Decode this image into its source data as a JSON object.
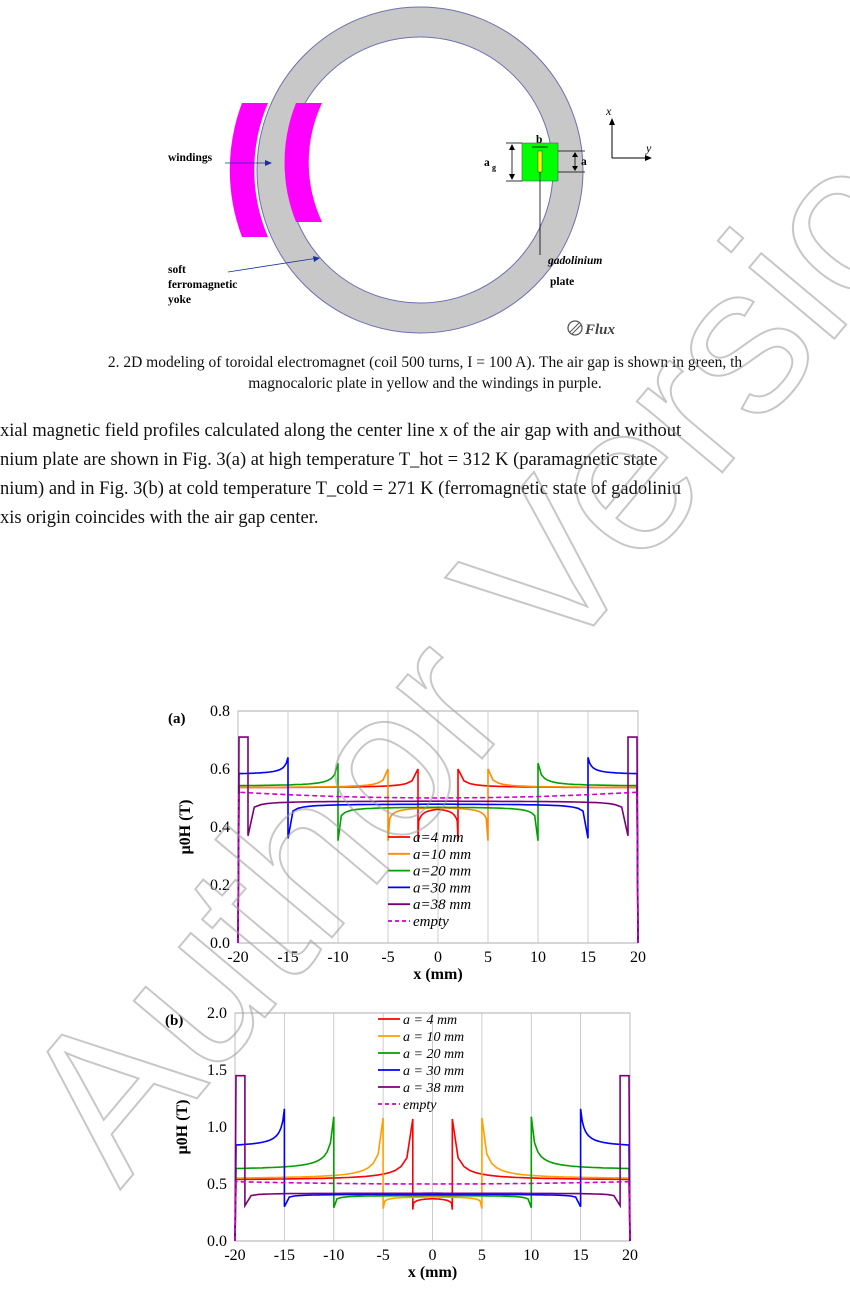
{
  "figure2": {
    "labels": {
      "windings": "windings",
      "yoke_l1": "soft",
      "yoke_l2": "ferromagnetic",
      "yoke_l3": "yoke",
      "gad_l1": "gadolinium",
      "gad_l2": "plate",
      "ag": "a",
      "ag_sub": "g",
      "b": "b",
      "a": "a",
      "axis_x": "x",
      "axis_y": "y",
      "logo": "Flux"
    },
    "colors": {
      "yoke": "#c8c8c8",
      "windings": "#ff00ff",
      "gap": "#00ff00",
      "plate": "#ffff00"
    },
    "caption_line1": "2. 2D modeling of toroidal electromagnet (coil 500 turns, I = 100 A). The air gap is shown in green, th",
    "caption_line2": "magnocaloric plate in yellow and the windings in purple."
  },
  "paragraph": {
    "line1": "xial magnetic field profiles calculated along the center line x of the air gap with and without",
    "line2": "nium plate are shown in Fig. 3(a) at high temperature T_hot = 312 K (paramagnetic state",
    "line3": "nium) and in Fig. 3(b) at cold temperature T_cold = 271 K (ferromagnetic state of gadoliniu",
    "line4": "xis origin coincides with the air gap center."
  },
  "watermark": "Author Version",
  "chart_data": [
    {
      "type": "line",
      "panel_label": "(a)",
      "xlabel": "x (mm)",
      "ylabel": "μ0H (T)",
      "xlim": [
        -20,
        20
      ],
      "ylim": [
        0,
        0.8
      ],
      "xticks": [
        "-20",
        "-15",
        "-10",
        "-5",
        "0",
        "5",
        "10",
        "15",
        "20"
      ],
      "yticks": [
        "0.0",
        "0.2",
        "0.4",
        "0.6",
        "0.8"
      ],
      "grid": "vertical",
      "legend_position": "center",
      "series": [
        {
          "name": "a=4 mm",
          "color": "#ff0000",
          "style": "solid",
          "a": 4,
          "center": 0.47,
          "peak": 0.6,
          "outer": 0.535
        },
        {
          "name": "a=10 mm",
          "color": "#ff8c00",
          "style": "solid",
          "a": 10,
          "center": 0.47,
          "peak": 0.6,
          "outer": 0.535
        },
        {
          "name": "a=20 mm",
          "color": "#00a000",
          "style": "solid",
          "a": 20,
          "center": 0.47,
          "peak": 0.62,
          "outer": 0.54
        },
        {
          "name": "a=30 mm",
          "color": "#0000ff",
          "style": "solid",
          "a": 30,
          "center": 0.48,
          "peak": 0.64,
          "outer": 0.58
        },
        {
          "name": "a=38 mm",
          "color": "#7a0078",
          "style": "solid",
          "a": 38,
          "center": 0.49,
          "peak": 0.71,
          "outer": 0.71
        },
        {
          "name": "empty",
          "color": "#d000d0",
          "style": "dashed",
          "a": 0,
          "center": 0.5,
          "peak": 0.5,
          "outer": 0.52
        }
      ]
    },
    {
      "type": "line",
      "panel_label": "(b)",
      "xlabel": "x (mm)",
      "ylabel": "μ0H (T)",
      "xlim": [
        -20,
        20
      ],
      "ylim": [
        0,
        2.0
      ],
      "xticks": [
        "-20",
        "-15",
        "-10",
        "-5",
        "0",
        "5",
        "10",
        "15",
        "20"
      ],
      "yticks": [
        "0.0",
        "0.5",
        "1.0",
        "1.5",
        "2.0"
      ],
      "grid": "vertical",
      "legend_position": "top-center",
      "series": [
        {
          "name": "a = 4 mm",
          "color": "#ff0000",
          "style": "solid",
          "a": 4,
          "center": 0.38,
          "peak": 1.07,
          "outer": 0.53
        },
        {
          "name": "a = 10 mm",
          "color": "#ffa000",
          "style": "solid",
          "a": 10,
          "center": 0.39,
          "peak": 1.08,
          "outer": 0.54
        },
        {
          "name": "a = 20 mm",
          "color": "#00a000",
          "style": "solid",
          "a": 20,
          "center": 0.4,
          "peak": 1.09,
          "outer": 0.62
        },
        {
          "name": "a = 30 mm",
          "color": "#0000ff",
          "style": "solid",
          "a": 30,
          "center": 0.41,
          "peak": 1.16,
          "outer": 0.82
        },
        {
          "name": "a = 38 mm",
          "color": "#7a0078",
          "style": "solid",
          "a": 38,
          "center": 0.42,
          "peak": 1.45,
          "outer": 1.45
        },
        {
          "name": "empty",
          "color": "#d000d0",
          "style": "dashed",
          "a": 0,
          "center": 0.5,
          "peak": 0.5,
          "outer": 0.52
        }
      ]
    }
  ]
}
